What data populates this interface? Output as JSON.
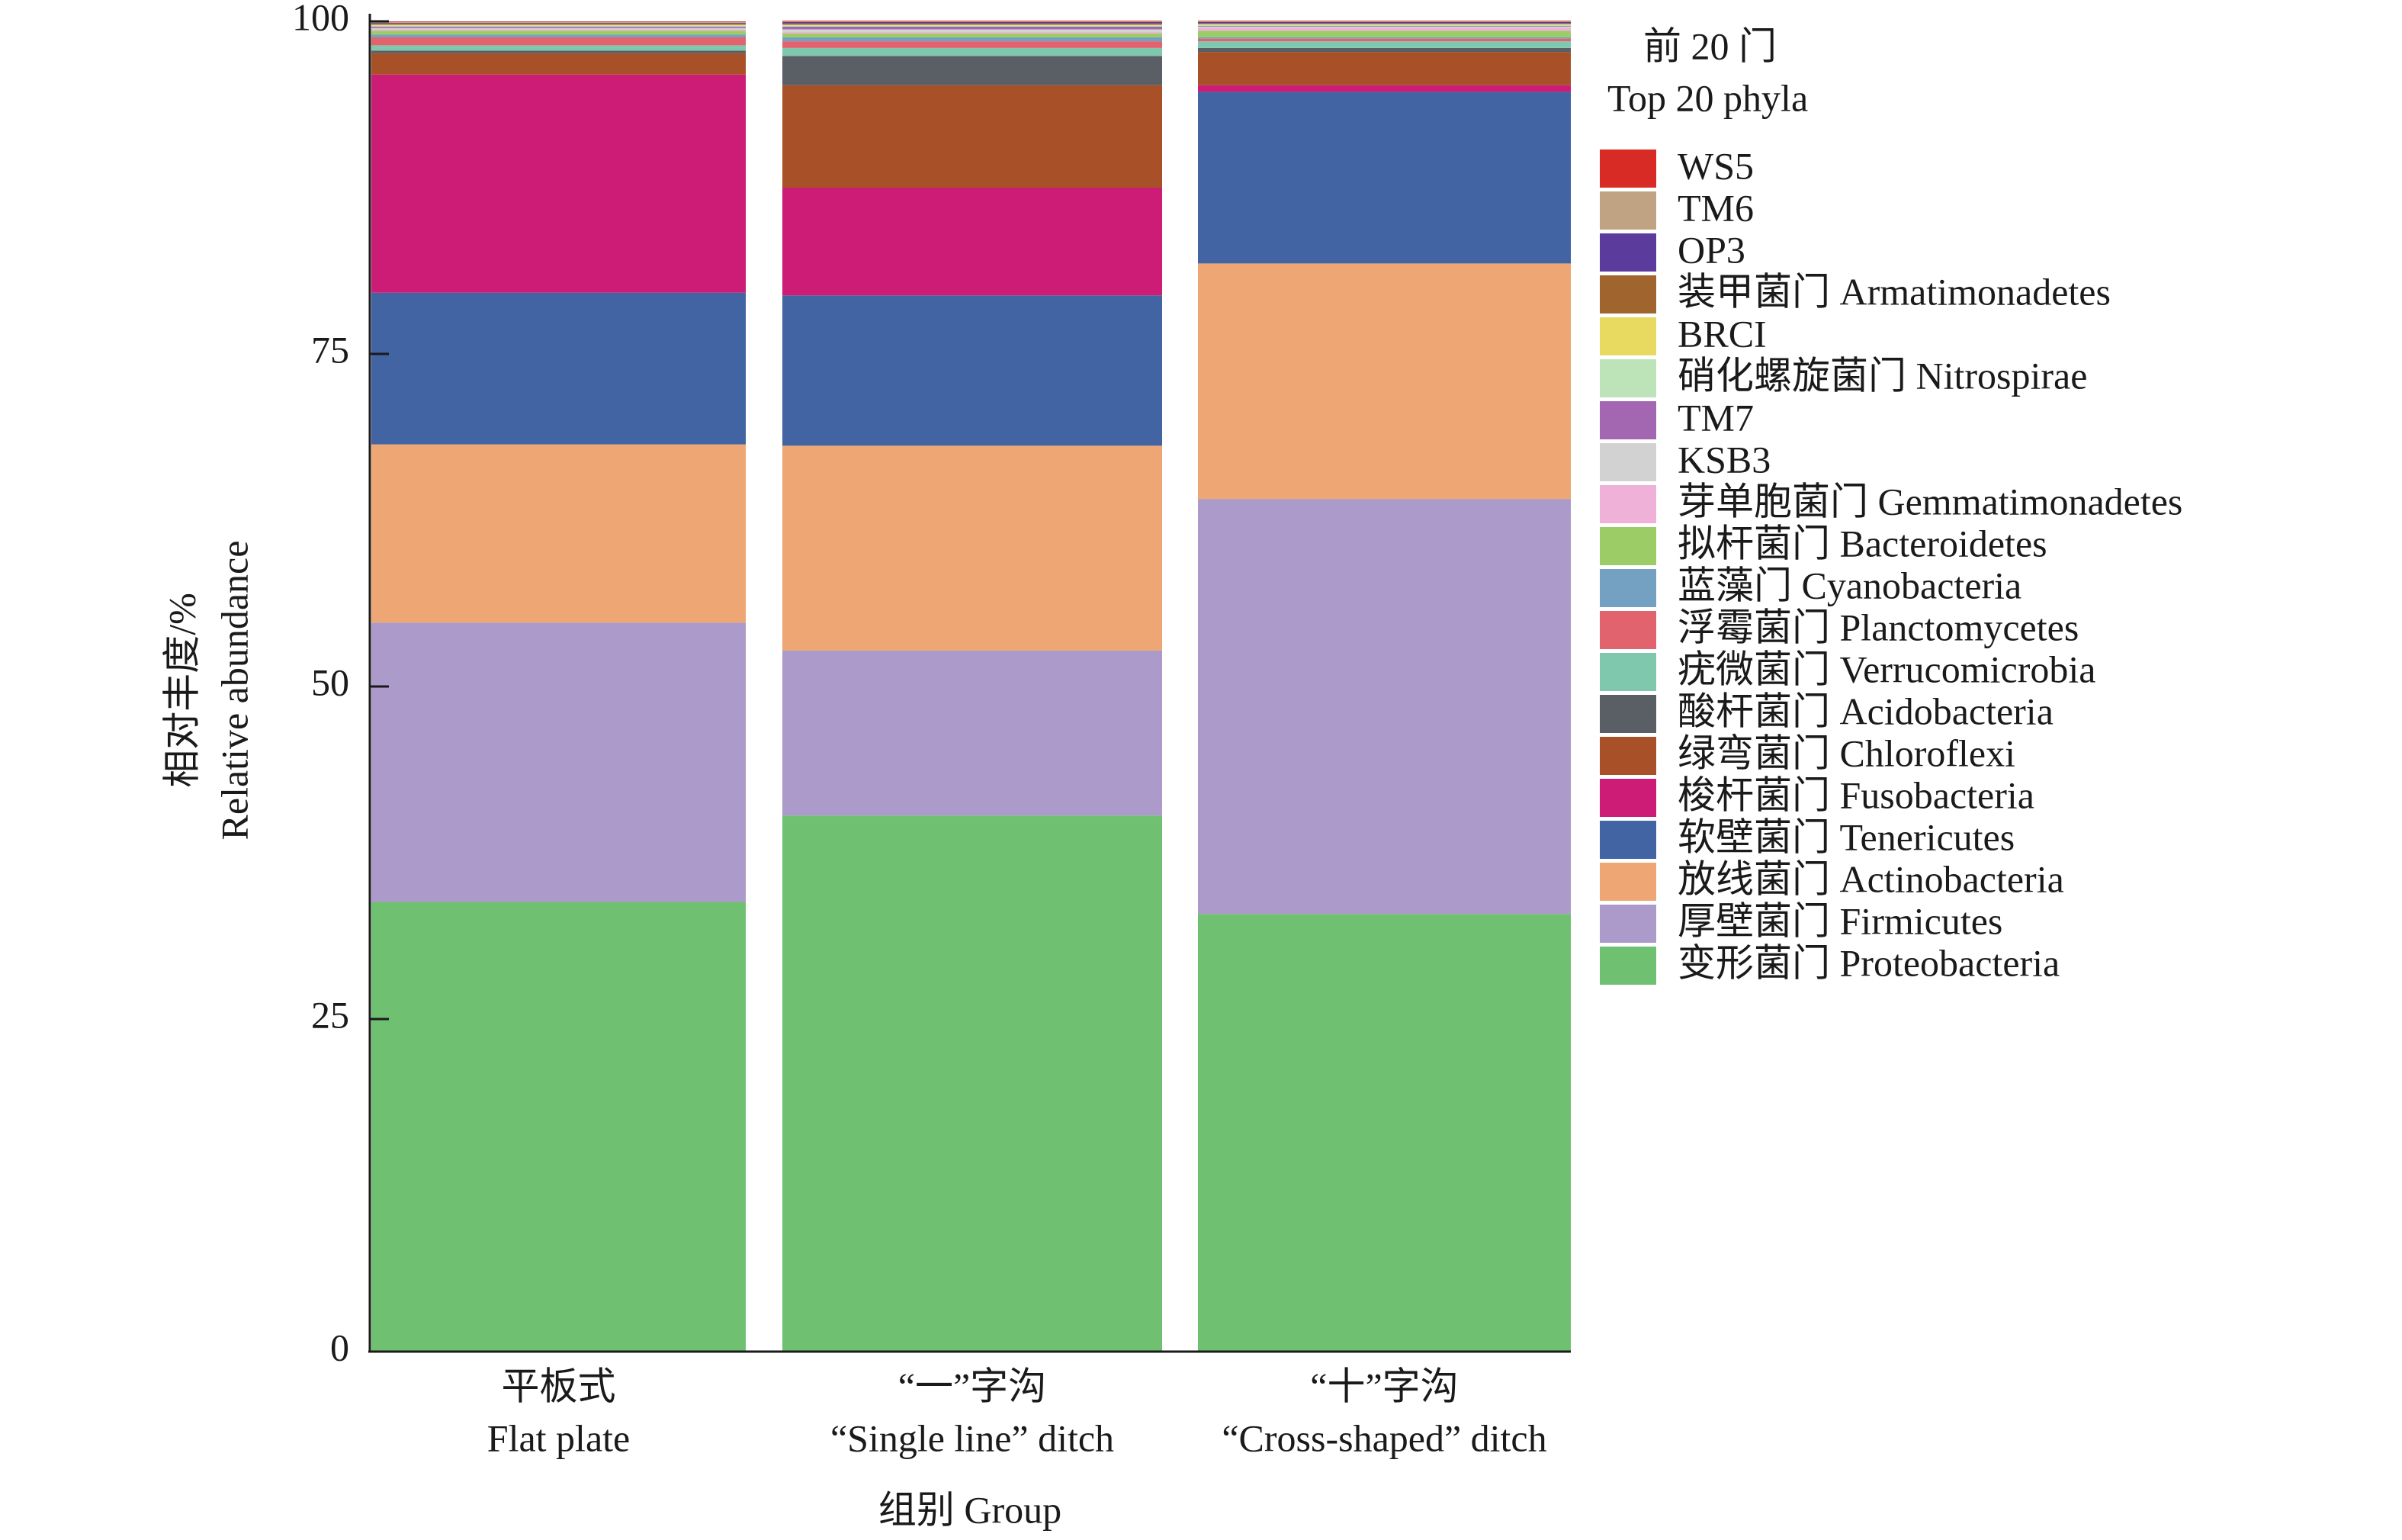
{
  "chart_data": {
    "type": "bar",
    "stacked": true,
    "title": "",
    "ylabel_cn": "相对丰度/%",
    "ylabel": "Relative abundance",
    "xlabel": "组别 Group",
    "ylim": [
      0,
      100
    ],
    "yticks": [
      0,
      25,
      50,
      75,
      100
    ],
    "grid": false,
    "legend_position": "right",
    "legend_title_cn": "前 20 门",
    "legend_title": "Top 20 phyla",
    "categories": [
      {
        "cn": "平板式",
        "en": "Flat plate"
      },
      {
        "cn": "“一”字沟",
        "en": "“Single line” ditch"
      },
      {
        "cn": "“十”字沟",
        "en": "“Cross-shaped” ditch"
      }
    ],
    "series": [
      {
        "name": "Proteobacteria",
        "label": "变形菌门 Proteobacteria",
        "color": "#70c072",
        "values": [
          33.8,
          40.3,
          32.9
        ]
      },
      {
        "name": "Firmicutes",
        "label": "厚壁菌门 Firmicutes",
        "color": "#ac9aca",
        "values": [
          21.0,
          12.4,
          31.2
        ]
      },
      {
        "name": "Actinobacteria",
        "label": "放线菌门 Actinobacteria",
        "color": "#eea674",
        "values": [
          13.4,
          15.4,
          17.7
        ]
      },
      {
        "name": "Tenericutes",
        "label": "软壁菌门 Tenericutes",
        "color": "#4264a3",
        "values": [
          11.4,
          11.3,
          12.9
        ]
      },
      {
        "name": "Fusobacteria",
        "label": "梭杆菌门 Fusobacteria",
        "color": "#cc1c76",
        "values": [
          16.4,
          8.1,
          0.5
        ]
      },
      {
        "name": "Chloroflexi",
        "label": "绿弯菌门 Chloroflexi",
        "color": "#a85128",
        "values": [
          1.6,
          7.7,
          2.5
        ]
      },
      {
        "name": "Acidobacteria",
        "label": "酸杆菌门 Acidobacteria",
        "color": "#5a5f66",
        "values": [
          0.2,
          2.2,
          0.3
        ]
      },
      {
        "name": "Verrucomicrobia",
        "label": "疣微菌门 Verrucomicrobia",
        "color": "#80c8ad",
        "values": [
          0.4,
          0.6,
          0.5
        ]
      },
      {
        "name": "Planctomycetes",
        "label": "浮霉菌门 Planctomycetes",
        "color": "#e0636e",
        "values": [
          0.6,
          0.5,
          0.2
        ]
      },
      {
        "name": "Cyanobacteria",
        "label": "蓝藻门 Cyanobacteria",
        "color": "#74a0c2",
        "values": [
          0.2,
          0.3,
          0.1
        ]
      },
      {
        "name": "Bacteroidetes",
        "label": "拟杆菌门 Bacteroidetes",
        "color": "#9ccc66",
        "values": [
          0.3,
          0.3,
          0.5
        ]
      },
      {
        "name": "Gemmatimonadetes",
        "label": "芽单胞菌门 Gemmatimonadetes",
        "color": "#efb1d8",
        "values": [
          0.1,
          0.1,
          0.2
        ]
      },
      {
        "name": "KSB3",
        "label": "KSB3",
        "color": "#d2d2d2",
        "values": [
          0.1,
          0.2,
          0.1
        ]
      },
      {
        "name": "TM7",
        "label": "TM7",
        "color": "#a366b0",
        "values": [
          0.1,
          0.2,
          0.05
        ]
      },
      {
        "name": "Nitrospirae",
        "label": "硝化螺旋菌门 Nitrospirae",
        "color": "#bde3b9",
        "values": [
          0.1,
          0.1,
          0.1
        ]
      },
      {
        "name": "BRCI",
        "label": "BRCI",
        "color": "#e8d960",
        "values": [
          0.05,
          0.05,
          0.05
        ]
      },
      {
        "name": "Armatimonadetes",
        "label": "装甲菌门 Armatimonadetes",
        "color": "#a0642f",
        "values": [
          0.1,
          0.1,
          0.05
        ]
      },
      {
        "name": "OP3",
        "label": "OP3",
        "color": "#5b3c9c",
        "values": [
          0.05,
          0.1,
          0.1
        ]
      },
      {
        "name": "TM6",
        "label": "TM6",
        "color": "#bfa383",
        "values": [
          0.05,
          0.05,
          0.05
        ]
      },
      {
        "name": "WS5",
        "label": "WS5",
        "color": "#d92b25",
        "values": [
          0.05,
          0.05,
          0.05
        ]
      }
    ],
    "legend_order": [
      "WS5",
      "TM6",
      "OP3",
      "Armatimonadetes",
      "BRCI",
      "Nitrospirae",
      "TM7",
      "KSB3",
      "Gemmatimonadetes",
      "Bacteroidetes",
      "Cyanobacteria",
      "Planctomycetes",
      "Verrucomicrobia",
      "Acidobacteria",
      "Chloroflexi",
      "Fusobacteria",
      "Tenericutes",
      "Actinobacteria",
      "Firmicutes",
      "Proteobacteria"
    ]
  }
}
